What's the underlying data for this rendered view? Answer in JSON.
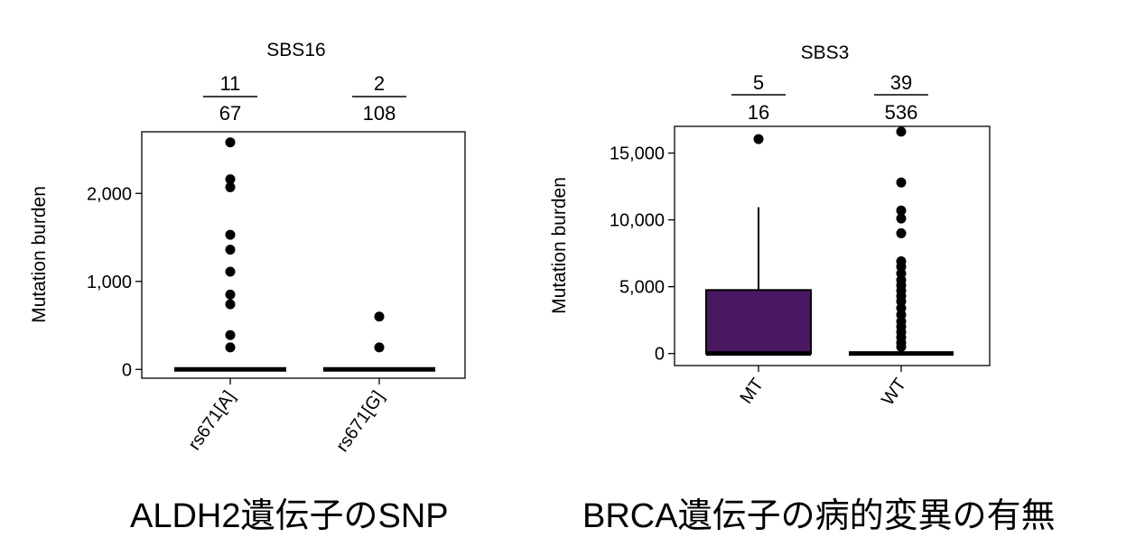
{
  "chart_data": [
    {
      "type": "box",
      "title": "SBS16",
      "ylabel": "Mutation burden",
      "xlabel": "",
      "ylim": [
        -100,
        2700
      ],
      "yticks": [
        0,
        1000,
        2000
      ],
      "ytick_labels": [
        "0",
        "1,000",
        "2,000"
      ],
      "categories": [
        "rs671[A]",
        "rs671[G]"
      ],
      "fractions": [
        {
          "numerator": "11",
          "denominator": "67"
        },
        {
          "numerator": "2",
          "denominator": "108"
        }
      ],
      "boxes": [
        {
          "category": "rs671[A]",
          "q1": 0,
          "median": 0,
          "q3": 0,
          "whisker_low": 0,
          "whisker_high": 0,
          "fill": "#000000",
          "outliers": [
            2580,
            2160,
            2070,
            1530,
            1360,
            1110,
            850,
            740,
            390,
            250
          ]
        },
        {
          "category": "rs671[G]",
          "q1": 0,
          "median": 0,
          "q3": 0,
          "whisker_low": 0,
          "whisker_high": 0,
          "fill": "#000000",
          "outliers": [
            600,
            250
          ]
        }
      ],
      "grid": false
    },
    {
      "type": "box",
      "title": "SBS3",
      "ylabel": "Mutation burden",
      "xlabel": "",
      "ylim": [
        -900,
        17000
      ],
      "yticks": [
        0,
        5000,
        10000,
        15000
      ],
      "ytick_labels": [
        "0",
        "5,000",
        "10,000",
        "15,000"
      ],
      "categories": [
        "MT",
        "WT"
      ],
      "fractions": [
        {
          "numerator": "5",
          "denominator": "16"
        },
        {
          "numerator": "39",
          "denominator": "536"
        }
      ],
      "boxes": [
        {
          "category": "MT",
          "q1": 0,
          "median": 0,
          "q3": 4750,
          "whisker_low": 0,
          "whisker_high": 10950,
          "fill": "#4a1761",
          "outliers": [
            16050
          ]
        },
        {
          "category": "WT",
          "q1": 0,
          "median": 0,
          "q3": 0,
          "whisker_low": 0,
          "whisker_high": 0,
          "fill": "#000000",
          "outliers": [
            16600,
            12800,
            10700,
            10100,
            9000,
            6900,
            6500,
            6000,
            5500,
            5100,
            4700,
            4300,
            3900,
            3400,
            2900,
            2400,
            2000,
            1600,
            1200,
            800,
            500
          ]
        }
      ],
      "grid": false
    }
  ],
  "captions": {
    "left": "ALDH2遺伝子のSNP",
    "right": "BRCA遺伝子の病的変異の有無"
  },
  "colors": {
    "mt_box": "#4a1761",
    "axis": "#000000",
    "points": "#000000"
  }
}
